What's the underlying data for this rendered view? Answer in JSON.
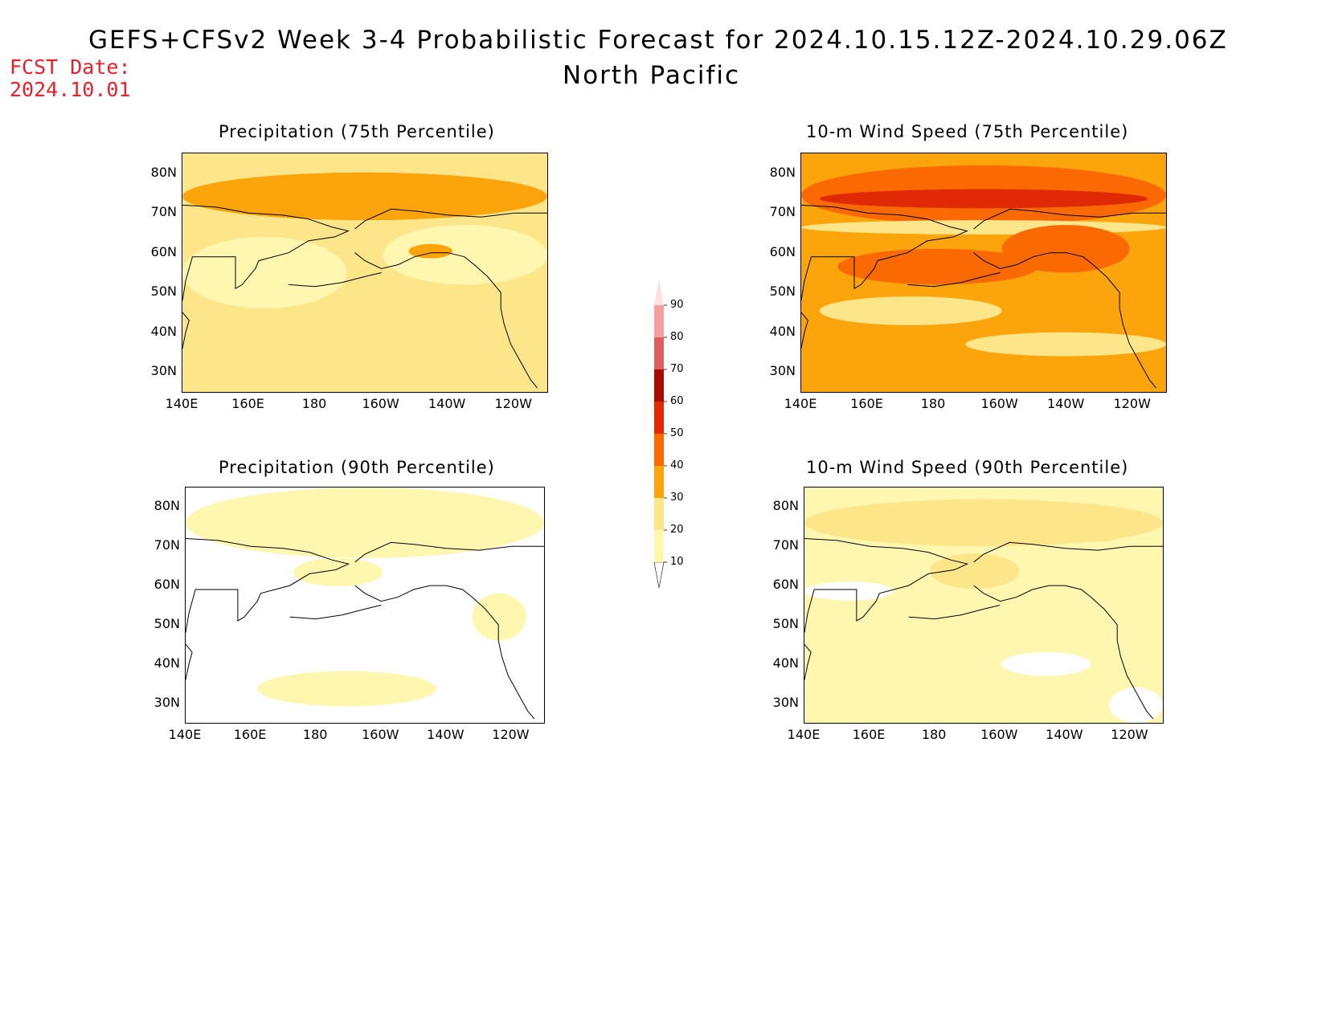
{
  "header": {
    "title": "GEFS+CFSv2 Week 3-4 Probabilistic Forecast for 2024.10.15.12Z-2024.10.29.06Z",
    "region": "North Pacific",
    "fcst_label": "FCST Date:",
    "fcst_date": "2024.10.01"
  },
  "axes": {
    "lat_ticks": [
      "80N",
      "70N",
      "60N",
      "50N",
      "40N",
      "30N"
    ],
    "lon_ticks": [
      "140E",
      "160E",
      "180",
      "160W",
      "140W",
      "120W"
    ]
  },
  "panels": [
    {
      "title": "Precipitation (75th Percentile)",
      "variable": "precipitation",
      "percentile": 75,
      "dominant_category": "20-30"
    },
    {
      "title": "10-m Wind Speed (75th Percentile)",
      "variable": "wind_speed_10m",
      "percentile": 75,
      "dominant_category": "30-40"
    },
    {
      "title": "Precipitation (90th Percentile)",
      "variable": "precipitation",
      "percentile": 90,
      "dominant_category": "<10"
    },
    {
      "title": "10-m Wind Speed (90th Percentile)",
      "variable": "wind_speed_10m",
      "percentile": 90,
      "dominant_category": "10-20"
    }
  ],
  "colorbar": {
    "levels": [
      "10",
      "20",
      "30",
      "40",
      "50",
      "60",
      "70",
      "80",
      "90"
    ],
    "colors": [
      "#fff7b0",
      "#fde68a",
      "#fba40b",
      "#fb6a02",
      "#e02a05",
      "#a90d01",
      "#e06060",
      "#f4a0a0",
      "#fde0e0"
    ]
  }
}
